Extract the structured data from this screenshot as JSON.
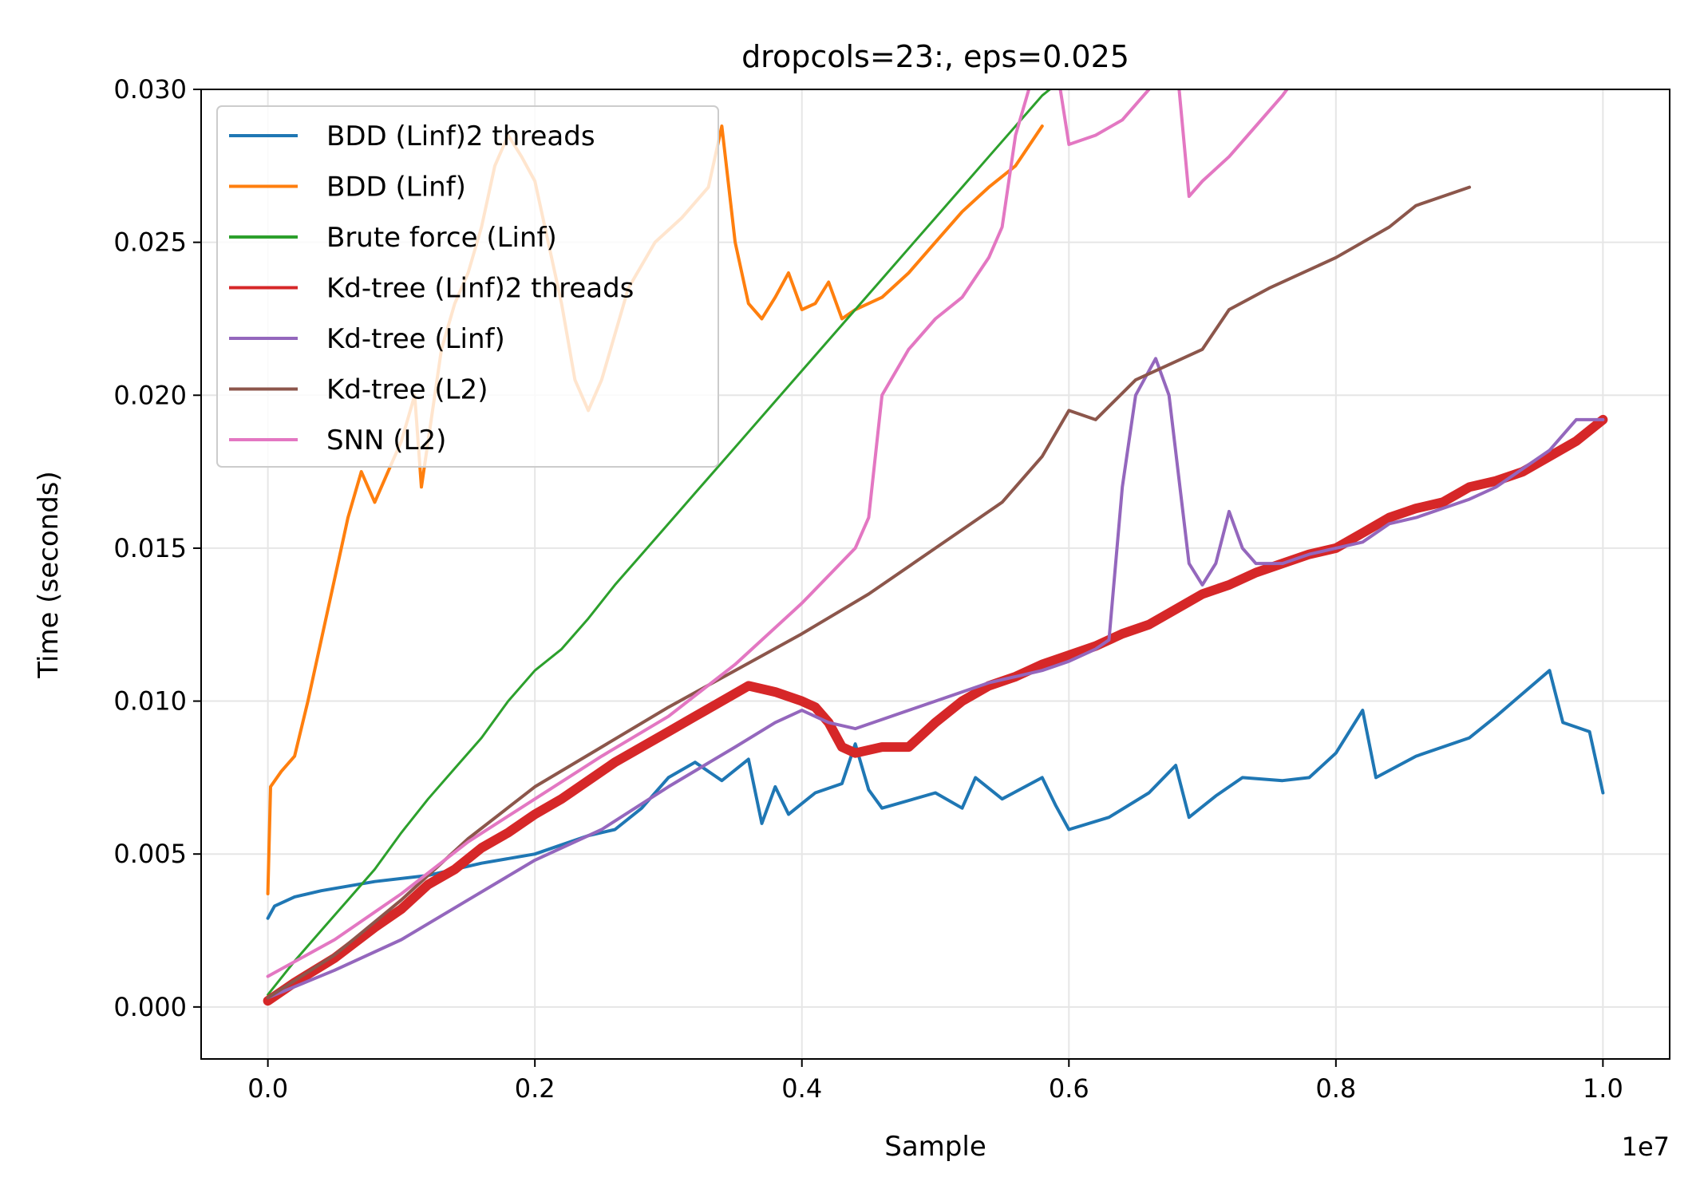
{
  "chart_data": {
    "type": "line",
    "title": "dropcols=23:, eps=0.025",
    "xlabel": "Sample",
    "ylabel": "Time (seconds)",
    "x_offset_text": "1e7",
    "xlim": [
      -0.05,
      1.05
    ],
    "ylim": [
      -0.0017,
      0.03
    ],
    "x_unit_factor": 10000000,
    "xticks": [
      0.0,
      0.2,
      0.4,
      0.6,
      0.8,
      1.0
    ],
    "xtick_labels": [
      "0.0",
      "0.2",
      "0.4",
      "0.6",
      "0.8",
      "1.0"
    ],
    "yticks": [
      0.0,
      0.005,
      0.01,
      0.015,
      0.02,
      0.025,
      0.03
    ],
    "ytick_labels": [
      "0.000",
      "0.005",
      "0.010",
      "0.015",
      "0.020",
      "0.025",
      "0.030"
    ],
    "grid": true,
    "legend_position": "upper-left",
    "series": [
      {
        "name": "BDD (Linf)2 threads",
        "color": "#1f77b4",
        "width": 4,
        "points": [
          [
            0.0,
            0.0029
          ],
          [
            0.005,
            0.0033
          ],
          [
            0.02,
            0.0036
          ],
          [
            0.04,
            0.0038
          ],
          [
            0.08,
            0.0041
          ],
          [
            0.12,
            0.0043
          ],
          [
            0.16,
            0.0047
          ],
          [
            0.2,
            0.005
          ],
          [
            0.22,
            0.0053
          ],
          [
            0.24,
            0.0056
          ],
          [
            0.26,
            0.0058
          ],
          [
            0.28,
            0.0065
          ],
          [
            0.3,
            0.0075
          ],
          [
            0.32,
            0.008
          ],
          [
            0.34,
            0.0074
          ],
          [
            0.36,
            0.0081
          ],
          [
            0.37,
            0.006
          ],
          [
            0.38,
            0.0072
          ],
          [
            0.39,
            0.0063
          ],
          [
            0.41,
            0.007
          ],
          [
            0.43,
            0.0073
          ],
          [
            0.44,
            0.0086
          ],
          [
            0.45,
            0.0071
          ],
          [
            0.46,
            0.0065
          ],
          [
            0.5,
            0.007
          ],
          [
            0.52,
            0.0065
          ],
          [
            0.53,
            0.0075
          ],
          [
            0.55,
            0.0068
          ],
          [
            0.58,
            0.0075
          ],
          [
            0.59,
            0.0066
          ],
          [
            0.6,
            0.0058
          ],
          [
            0.63,
            0.0062
          ],
          [
            0.66,
            0.007
          ],
          [
            0.68,
            0.0079
          ],
          [
            0.69,
            0.0062
          ],
          [
            0.71,
            0.0069
          ],
          [
            0.73,
            0.0075
          ],
          [
            0.76,
            0.0074
          ],
          [
            0.78,
            0.0075
          ],
          [
            0.8,
            0.0083
          ],
          [
            0.82,
            0.0097
          ],
          [
            0.83,
            0.0075
          ],
          [
            0.86,
            0.0082
          ],
          [
            0.9,
            0.0088
          ],
          [
            0.92,
            0.0095
          ],
          [
            0.96,
            0.011
          ],
          [
            0.97,
            0.0093
          ],
          [
            0.99,
            0.009
          ],
          [
            1.0,
            0.007
          ]
        ]
      },
      {
        "name": "BDD (Linf)",
        "color": "#ff7f0e",
        "width": 4,
        "points": [
          [
            0.0,
            0.0037
          ],
          [
            0.002,
            0.0072
          ],
          [
            0.01,
            0.0077
          ],
          [
            0.02,
            0.0082
          ],
          [
            0.03,
            0.01
          ],
          [
            0.04,
            0.012
          ],
          [
            0.05,
            0.014
          ],
          [
            0.06,
            0.016
          ],
          [
            0.07,
            0.0175
          ],
          [
            0.08,
            0.0165
          ],
          [
            0.09,
            0.0175
          ],
          [
            0.1,
            0.0185
          ],
          [
            0.11,
            0.02
          ],
          [
            0.115,
            0.017
          ],
          [
            0.12,
            0.0185
          ],
          [
            0.13,
            0.0215
          ],
          [
            0.14,
            0.023
          ],
          [
            0.15,
            0.024
          ],
          [
            0.16,
            0.0255
          ],
          [
            0.17,
            0.0275
          ],
          [
            0.18,
            0.0285
          ],
          [
            0.19,
            0.0278
          ],
          [
            0.2,
            0.027
          ],
          [
            0.21,
            0.025
          ],
          [
            0.22,
            0.023
          ],
          [
            0.23,
            0.0205
          ],
          [
            0.24,
            0.0195
          ],
          [
            0.25,
            0.0205
          ],
          [
            0.27,
            0.0235
          ],
          [
            0.29,
            0.025
          ],
          [
            0.31,
            0.0258
          ],
          [
            0.33,
            0.0268
          ],
          [
            0.34,
            0.0288
          ],
          [
            0.35,
            0.025
          ],
          [
            0.36,
            0.023
          ],
          [
            0.37,
            0.0225
          ],
          [
            0.38,
            0.0232
          ],
          [
            0.39,
            0.024
          ],
          [
            0.4,
            0.0228
          ],
          [
            0.41,
            0.023
          ],
          [
            0.42,
            0.0237
          ],
          [
            0.43,
            0.0225
          ],
          [
            0.44,
            0.0228
          ],
          [
            0.46,
            0.0232
          ],
          [
            0.48,
            0.024
          ],
          [
            0.5,
            0.025
          ],
          [
            0.52,
            0.026
          ],
          [
            0.54,
            0.0268
          ],
          [
            0.56,
            0.0275
          ],
          [
            0.58,
            0.0288
          ]
        ]
      },
      {
        "name": "Brute force (Linf)",
        "color": "#2ca02c",
        "width": 3,
        "points": [
          [
            0.0,
            0.0004
          ],
          [
            0.02,
            0.0015
          ],
          [
            0.04,
            0.0025
          ],
          [
            0.06,
            0.0035
          ],
          [
            0.08,
            0.0045
          ],
          [
            0.1,
            0.0057
          ],
          [
            0.12,
            0.0068
          ],
          [
            0.14,
            0.0078
          ],
          [
            0.16,
            0.0088
          ],
          [
            0.18,
            0.01
          ],
          [
            0.2,
            0.011
          ],
          [
            0.22,
            0.0117
          ],
          [
            0.24,
            0.0127
          ],
          [
            0.26,
            0.0138
          ],
          [
            0.28,
            0.0148
          ],
          [
            0.3,
            0.0158
          ],
          [
            0.32,
            0.0168
          ],
          [
            0.34,
            0.0178
          ],
          [
            0.36,
            0.0188
          ],
          [
            0.38,
            0.0198
          ],
          [
            0.4,
            0.0208
          ],
          [
            0.42,
            0.0218
          ],
          [
            0.44,
            0.0228
          ],
          [
            0.46,
            0.0238
          ],
          [
            0.48,
            0.0248
          ],
          [
            0.5,
            0.0258
          ],
          [
            0.52,
            0.0268
          ],
          [
            0.54,
            0.0278
          ],
          [
            0.56,
            0.0288
          ],
          [
            0.58,
            0.0298
          ],
          [
            0.6,
            0.0305
          ]
        ]
      },
      {
        "name": "Kd-tree (Linf)2 threads",
        "color": "#d62728",
        "width": 12,
        "points": [
          [
            0.0,
            0.0002
          ],
          [
            0.02,
            0.0008
          ],
          [
            0.05,
            0.0016
          ],
          [
            0.08,
            0.0026
          ],
          [
            0.1,
            0.0032
          ],
          [
            0.12,
            0.004
          ],
          [
            0.14,
            0.0045
          ],
          [
            0.16,
            0.0052
          ],
          [
            0.18,
            0.0057
          ],
          [
            0.2,
            0.0063
          ],
          [
            0.22,
            0.0068
          ],
          [
            0.24,
            0.0074
          ],
          [
            0.26,
            0.008
          ],
          [
            0.28,
            0.0085
          ],
          [
            0.3,
            0.009
          ],
          [
            0.32,
            0.0095
          ],
          [
            0.34,
            0.01
          ],
          [
            0.36,
            0.0105
          ],
          [
            0.38,
            0.0103
          ],
          [
            0.4,
            0.01
          ],
          [
            0.41,
            0.0098
          ],
          [
            0.42,
            0.0093
          ],
          [
            0.43,
            0.0085
          ],
          [
            0.44,
            0.0083
          ],
          [
            0.46,
            0.0085
          ],
          [
            0.48,
            0.0085
          ],
          [
            0.5,
            0.0093
          ],
          [
            0.52,
            0.01
          ],
          [
            0.54,
            0.0105
          ],
          [
            0.56,
            0.0108
          ],
          [
            0.58,
            0.0112
          ],
          [
            0.6,
            0.0115
          ],
          [
            0.62,
            0.0118
          ],
          [
            0.64,
            0.0122
          ],
          [
            0.66,
            0.0125
          ],
          [
            0.68,
            0.013
          ],
          [
            0.7,
            0.0135
          ],
          [
            0.72,
            0.0138
          ],
          [
            0.74,
            0.0142
          ],
          [
            0.76,
            0.0145
          ],
          [
            0.78,
            0.0148
          ],
          [
            0.8,
            0.015
          ],
          [
            0.82,
            0.0155
          ],
          [
            0.84,
            0.016
          ],
          [
            0.86,
            0.0163
          ],
          [
            0.88,
            0.0165
          ],
          [
            0.9,
            0.017
          ],
          [
            0.92,
            0.0172
          ],
          [
            0.94,
            0.0175
          ],
          [
            0.96,
            0.018
          ],
          [
            0.98,
            0.0185
          ],
          [
            1.0,
            0.0192
          ]
        ]
      },
      {
        "name": "Kd-tree (Linf)",
        "color": "#9467bd",
        "width": 4,
        "points": [
          [
            0.0,
            0.0003
          ],
          [
            0.05,
            0.0012
          ],
          [
            0.1,
            0.0022
          ],
          [
            0.15,
            0.0035
          ],
          [
            0.2,
            0.0048
          ],
          [
            0.25,
            0.0058
          ],
          [
            0.3,
            0.0072
          ],
          [
            0.35,
            0.0085
          ],
          [
            0.38,
            0.0093
          ],
          [
            0.4,
            0.0097
          ],
          [
            0.42,
            0.0093
          ],
          [
            0.44,
            0.0091
          ],
          [
            0.46,
            0.0094
          ],
          [
            0.48,
            0.0097
          ],
          [
            0.5,
            0.01
          ],
          [
            0.52,
            0.0103
          ],
          [
            0.54,
            0.0106
          ],
          [
            0.56,
            0.0108
          ],
          [
            0.58,
            0.011
          ],
          [
            0.6,
            0.0113
          ],
          [
            0.62,
            0.0117
          ],
          [
            0.63,
            0.012
          ],
          [
            0.64,
            0.017
          ],
          [
            0.65,
            0.02
          ],
          [
            0.665,
            0.0212
          ],
          [
            0.675,
            0.02
          ],
          [
            0.69,
            0.0145
          ],
          [
            0.7,
            0.0138
          ],
          [
            0.71,
            0.0145
          ],
          [
            0.72,
            0.0162
          ],
          [
            0.73,
            0.015
          ],
          [
            0.74,
            0.0145
          ],
          [
            0.76,
            0.0145
          ],
          [
            0.78,
            0.0148
          ],
          [
            0.8,
            0.015
          ],
          [
            0.82,
            0.0152
          ],
          [
            0.84,
            0.0158
          ],
          [
            0.86,
            0.016
          ],
          [
            0.88,
            0.0163
          ],
          [
            0.9,
            0.0166
          ],
          [
            0.92,
            0.017
          ],
          [
            0.94,
            0.0176
          ],
          [
            0.96,
            0.0182
          ],
          [
            0.98,
            0.0192
          ],
          [
            1.0,
            0.0192
          ]
        ]
      },
      {
        "name": "Kd-tree (L2)",
        "color": "#8c564b",
        "width": 4,
        "points": [
          [
            0.0,
            0.0003
          ],
          [
            0.05,
            0.0017
          ],
          [
            0.1,
            0.0035
          ],
          [
            0.15,
            0.0055
          ],
          [
            0.2,
            0.0072
          ],
          [
            0.25,
            0.0085
          ],
          [
            0.3,
            0.0098
          ],
          [
            0.35,
            0.011
          ],
          [
            0.4,
            0.0122
          ],
          [
            0.45,
            0.0135
          ],
          [
            0.5,
            0.015
          ],
          [
            0.55,
            0.0165
          ],
          [
            0.58,
            0.018
          ],
          [
            0.6,
            0.0195
          ],
          [
            0.62,
            0.0192
          ],
          [
            0.65,
            0.0205
          ],
          [
            0.7,
            0.0215
          ],
          [
            0.72,
            0.0228
          ],
          [
            0.75,
            0.0235
          ],
          [
            0.8,
            0.0245
          ],
          [
            0.84,
            0.0255
          ],
          [
            0.86,
            0.0262
          ],
          [
            0.88,
            0.0265
          ],
          [
            0.9,
            0.0268
          ]
        ]
      },
      {
        "name": "SNN (L2)",
        "color": "#e377c2",
        "width": 4,
        "points": [
          [
            0.0,
            0.001
          ],
          [
            0.05,
            0.0022
          ],
          [
            0.1,
            0.0037
          ],
          [
            0.15,
            0.0054
          ],
          [
            0.2,
            0.0068
          ],
          [
            0.25,
            0.0082
          ],
          [
            0.3,
            0.0095
          ],
          [
            0.35,
            0.0112
          ],
          [
            0.4,
            0.0132
          ],
          [
            0.44,
            0.015
          ],
          [
            0.45,
            0.016
          ],
          [
            0.46,
            0.02
          ],
          [
            0.48,
            0.0215
          ],
          [
            0.5,
            0.0225
          ],
          [
            0.52,
            0.0232
          ],
          [
            0.54,
            0.0245
          ],
          [
            0.55,
            0.0255
          ],
          [
            0.56,
            0.0285
          ],
          [
            0.57,
            0.03
          ],
          [
            0.58,
            0.031
          ],
          [
            0.59,
            0.031
          ],
          [
            0.6,
            0.0282
          ],
          [
            0.62,
            0.0285
          ],
          [
            0.64,
            0.029
          ],
          [
            0.66,
            0.03
          ],
          [
            0.68,
            0.0312
          ],
          [
            0.69,
            0.0265
          ],
          [
            0.7,
            0.027
          ],
          [
            0.72,
            0.0278
          ],
          [
            0.74,
            0.0288
          ],
          [
            0.76,
            0.0298
          ],
          [
            0.78,
            0.031
          ]
        ]
      }
    ]
  }
}
